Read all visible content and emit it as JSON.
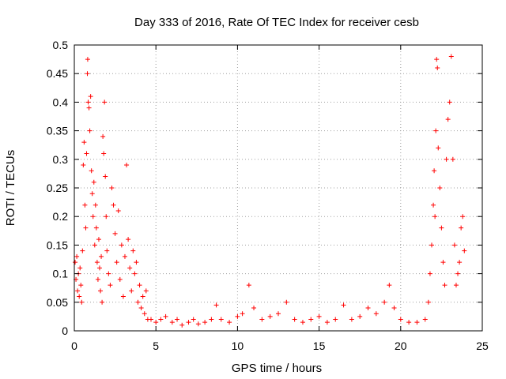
{
  "chart_data": {
    "type": "scatter",
    "title": "Day 333 of 2016, Rate Of TEC Index for receiver cesb",
    "xlabel": "GPS time / hours",
    "ylabel": "ROTI / TECUs",
    "xlim": [
      0,
      25
    ],
    "ylim": [
      0,
      0.5
    ],
    "xticks": [
      0,
      5,
      10,
      15,
      20,
      25
    ],
    "xtick_labels": [
      "0",
      "5",
      "10",
      "15",
      "20",
      "25"
    ],
    "yticks": [
      0,
      0.05,
      0.1,
      0.15,
      0.2,
      0.25,
      0.3,
      0.35,
      0.4,
      0.45,
      0.5
    ],
    "ytick_labels": [
      "0",
      "0.05",
      "0.1",
      "0.15",
      "0.2",
      "0.25",
      "0.3",
      "0.35",
      "0.4",
      "0.45",
      "0.5"
    ],
    "grid": true,
    "marker": "+",
    "color": "#ff0000",
    "series": [
      {
        "name": "ROTI",
        "points": [
          [
            0.05,
            0.12
          ],
          [
            0.1,
            0.09
          ],
          [
            0.15,
            0.13
          ],
          [
            0.2,
            0.07
          ],
          [
            0.25,
            0.1
          ],
          [
            0.3,
            0.06
          ],
          [
            0.35,
            0.11
          ],
          [
            0.4,
            0.08
          ],
          [
            0.45,
            0.05
          ],
          [
            0.5,
            0.14
          ],
          [
            0.55,
            0.29
          ],
          [
            0.6,
            0.33
          ],
          [
            0.65,
            0.22
          ],
          [
            0.7,
            0.18
          ],
          [
            0.75,
            0.31
          ],
          [
            0.8,
            0.45
          ],
          [
            0.82,
            0.475
          ],
          [
            0.85,
            0.4
          ],
          [
            0.9,
            0.39
          ],
          [
            0.95,
            0.35
          ],
          [
            1.0,
            0.41
          ],
          [
            1.05,
            0.28
          ],
          [
            1.1,
            0.24
          ],
          [
            1.15,
            0.2
          ],
          [
            1.2,
            0.26
          ],
          [
            1.25,
            0.15
          ],
          [
            1.3,
            0.22
          ],
          [
            1.35,
            0.18
          ],
          [
            1.4,
            0.12
          ],
          [
            1.45,
            0.09
          ],
          [
            1.5,
            0.16
          ],
          [
            1.55,
            0.11
          ],
          [
            1.6,
            0.07
          ],
          [
            1.65,
            0.13
          ],
          [
            1.7,
            0.05
          ],
          [
            1.75,
            0.34
          ],
          [
            1.8,
            0.31
          ],
          [
            1.85,
            0.4
          ],
          [
            1.9,
            0.27
          ],
          [
            1.95,
            0.2
          ],
          [
            2.0,
            0.14
          ],
          [
            2.1,
            0.1
          ],
          [
            2.2,
            0.08
          ],
          [
            2.3,
            0.25
          ],
          [
            2.4,
            0.22
          ],
          [
            2.5,
            0.17
          ],
          [
            2.6,
            0.12
          ],
          [
            2.7,
            0.21
          ],
          [
            2.8,
            0.09
          ],
          [
            2.9,
            0.15
          ],
          [
            3.0,
            0.06
          ],
          [
            3.1,
            0.13
          ],
          [
            3.2,
            0.29
          ],
          [
            3.3,
            0.16
          ],
          [
            3.4,
            0.11
          ],
          [
            3.5,
            0.07
          ],
          [
            3.6,
            0.14
          ],
          [
            3.7,
            0.1
          ],
          [
            3.8,
            0.12
          ],
          [
            3.9,
            0.05
          ],
          [
            4.0,
            0.08
          ],
          [
            4.1,
            0.04
          ],
          [
            4.2,
            0.06
          ],
          [
            4.3,
            0.03
          ],
          [
            4.4,
            0.07
          ],
          [
            4.5,
            0.02
          ],
          [
            4.7,
            0.02
          ],
          [
            5.0,
            0.015
          ],
          [
            5.3,
            0.02
          ],
          [
            5.6,
            0.025
          ],
          [
            6.0,
            0.015
          ],
          [
            6.3,
            0.02
          ],
          [
            6.6,
            0.01
          ],
          [
            7.0,
            0.015
          ],
          [
            7.3,
            0.02
          ],
          [
            7.6,
            0.012
          ],
          [
            8.0,
            0.015
          ],
          [
            8.4,
            0.02
          ],
          [
            8.7,
            0.045
          ],
          [
            9.0,
            0.02
          ],
          [
            9.5,
            0.015
          ],
          [
            10.0,
            0.025
          ],
          [
            10.3,
            0.03
          ],
          [
            10.7,
            0.08
          ],
          [
            11.0,
            0.04
          ],
          [
            11.5,
            0.02
          ],
          [
            12.0,
            0.025
          ],
          [
            12.5,
            0.03
          ],
          [
            13.0,
            0.05
          ],
          [
            13.5,
            0.02
          ],
          [
            14.0,
            0.015
          ],
          [
            14.5,
            0.02
          ],
          [
            15.0,
            0.025
          ],
          [
            15.5,
            0.015
          ],
          [
            16.0,
            0.02
          ],
          [
            16.5,
            0.045
          ],
          [
            17.0,
            0.02
          ],
          [
            17.5,
            0.025
          ],
          [
            18.0,
            0.04
          ],
          [
            18.5,
            0.03
          ],
          [
            19.0,
            0.05
          ],
          [
            19.3,
            0.08
          ],
          [
            19.6,
            0.04
          ],
          [
            20.0,
            0.02
          ],
          [
            20.5,
            0.015
          ],
          [
            21.0,
            0.015
          ],
          [
            21.5,
            0.02
          ],
          [
            21.7,
            0.05
          ],
          [
            21.8,
            0.1
          ],
          [
            21.9,
            0.15
          ],
          [
            22.0,
            0.22
          ],
          [
            22.05,
            0.28
          ],
          [
            22.1,
            0.2
          ],
          [
            22.15,
            0.35
          ],
          [
            22.2,
            0.475
          ],
          [
            22.25,
            0.46
          ],
          [
            22.3,
            0.32
          ],
          [
            22.4,
            0.25
          ],
          [
            22.5,
            0.18
          ],
          [
            22.6,
            0.12
          ],
          [
            22.7,
            0.08
          ],
          [
            22.8,
            0.3
          ],
          [
            22.9,
            0.37
          ],
          [
            23.0,
            0.4
          ],
          [
            23.1,
            0.48
          ],
          [
            23.2,
            0.3
          ],
          [
            23.3,
            0.15
          ],
          [
            23.4,
            0.08
          ],
          [
            23.5,
            0.1
          ],
          [
            23.6,
            0.12
          ],
          [
            23.7,
            0.18
          ],
          [
            23.8,
            0.2
          ],
          [
            23.9,
            0.14
          ]
        ]
      }
    ]
  }
}
